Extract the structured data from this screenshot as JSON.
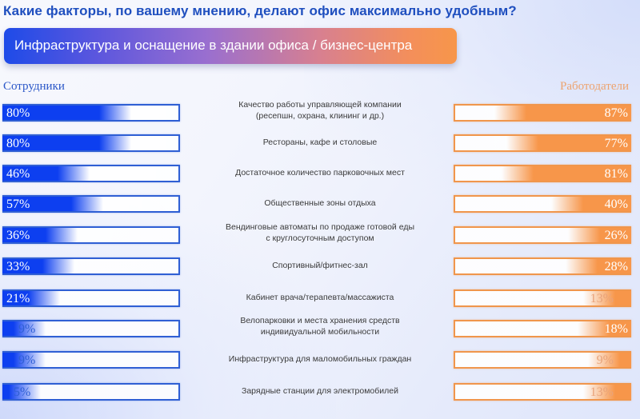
{
  "header": {
    "question": "Какие факторы, по вашему мнению, делают офис максимально удобным?",
    "section_banner": "Инфраструктура и оснащение в здании офиса / бизнес-центра"
  },
  "columns": {
    "left": "Сотрудники",
    "right": "Работодатели"
  },
  "colors": {
    "employees": "#0d3ff0",
    "employers": "#f7964a",
    "title": "#1f4fbf",
    "banner_start": "#1e4be8",
    "banner_end": "#f7964a"
  },
  "rows": [
    {
      "label": "Качество работы управляющей компании\n(ресепшн, охрана, клининг и др.)",
      "employees": 80,
      "employers": 87,
      "employees_text": "80%",
      "employers_text": "87%"
    },
    {
      "label": "Рестораны, кафе и столовые",
      "employees": 80,
      "employers": 77,
      "employees_text": "80%",
      "employers_text": "77%"
    },
    {
      "label": "Достаточное количество парковочных мест",
      "employees": 46,
      "employers": 81,
      "employees_text": "46%",
      "employers_text": "81%"
    },
    {
      "label": "Общественные зоны отдыха",
      "employees": 57,
      "employers": 40,
      "employees_text": "57%",
      "employers_text": "40%"
    },
    {
      "label": "Вендинговые автоматы по продаже готовой еды\nс круглосуточным доступом",
      "employees": 36,
      "employers": 26,
      "employees_text": "36%",
      "employers_text": "26%"
    },
    {
      "label": "Спортивный/фитнес-зал",
      "employees": 33,
      "employers": 28,
      "employees_text": "33%",
      "employers_text": "28%"
    },
    {
      "label": "Кабинет врача/терапевта/массажиста",
      "employees": 21,
      "employers": 13,
      "employees_text": "21%",
      "employers_text": "13%"
    },
    {
      "label": "Велопарковки и места хранения средств\nиндивидуальной мобильности",
      "employees": 9,
      "employers": 18,
      "employees_text": "9%",
      "employers_text": "18%"
    },
    {
      "label": "Инфраструктура для маломобильных граждан",
      "employees": 9,
      "employers": 9,
      "employees_text": "9%",
      "employers_text": "9%"
    },
    {
      "label": "Зарядные станции для электромобилей",
      "employees": 5,
      "employers": 13,
      "employees_text": "5%",
      "employers_text": "13%"
    }
  ],
  "chart_data": {
    "type": "bar",
    "title": "Какие факторы, по вашему мнению, делают офис максимально удобным?",
    "subtitle": "Инфраструктура и оснащение в здании офиса / бизнес-центра",
    "orientation": "horizontal-diverging",
    "categories": [
      "Качество работы управляющей компании (ресепшн, охрана, клининг и др.)",
      "Рестораны, кафе и столовые",
      "Достаточное количество парковочных мест",
      "Общественные зоны отдыха",
      "Вендинговые автоматы по продаже готовой еды с круглосуточным доступом",
      "Спортивный/фитнес-зал",
      "Кабинет врача/терапевта/массажиста",
      "Велопарковки и места хранения средств индивидуальной мобильности",
      "Инфраструктура для маломобильных граждан",
      "Зарядные станции для электромобилей"
    ],
    "series": [
      {
        "name": "Сотрудники",
        "color": "#0d3ff0",
        "values": [
          80,
          80,
          46,
          57,
          36,
          33,
          21,
          9,
          9,
          5
        ]
      },
      {
        "name": "Работодатели",
        "color": "#f7964a",
        "values": [
          87,
          77,
          81,
          40,
          26,
          28,
          13,
          18,
          9,
          13
        ]
      }
    ],
    "unit": "%",
    "xlim": [
      0,
      100
    ],
    "grid": false,
    "legend_position": "top (column headers)"
  }
}
